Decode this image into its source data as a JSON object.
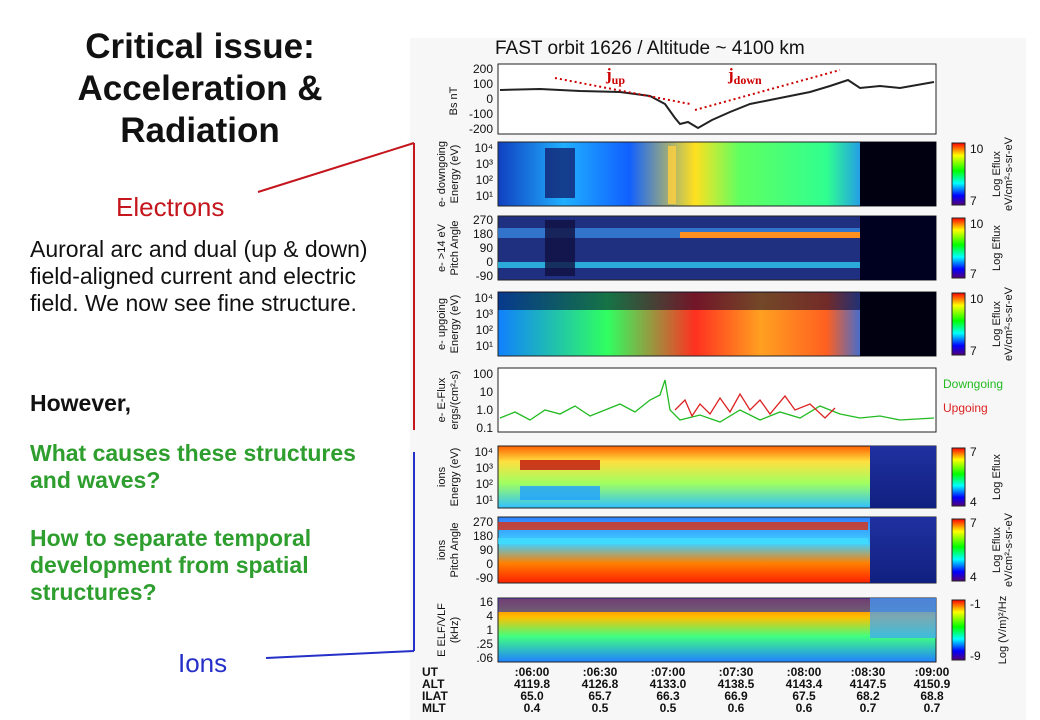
{
  "title": [
    "Critical issue:",
    "Acceleration &",
    "Radiation"
  ],
  "labels": {
    "electrons": "Electrons",
    "ions": "Ions"
  },
  "paragraphs": {
    "p1": "Auroral arc and dual (up & down) field-aligned current and electric field.  We now see fine structure.",
    "p2": "However,",
    "p3": "What causes these structures and waves?",
    "p4": "How to separate temporal development from spatial structures?"
  },
  "figure": {
    "caption": "FAST orbit 1626 / Altitude ~ 4100 km",
    "j_up": "j",
    "j_up_sub": "up",
    "j_down": "j",
    "j_down_sub": "down",
    "panels": [
      {
        "ylabel": [
          "Bs  nT"
        ],
        "ticks": [
          "200",
          "100",
          "0",
          "-100",
          "-200"
        ]
      },
      {
        "ylabel": [
          "e- downgoing",
          "Energy (eV)"
        ],
        "ticks": [
          "10⁴",
          "10³",
          "10²",
          "10¹"
        ],
        "cbar": [
          "10",
          "7"
        ],
        "cbar_label": [
          "Log Eflux",
          "eV/cm²-s-sr-eV"
        ]
      },
      {
        "ylabel": [
          "e- >14 eV",
          "Pitch Angle"
        ],
        "ticks": [
          "270",
          "180",
          "90",
          "0",
          "-90"
        ],
        "cbar": [
          "10",
          "7"
        ],
        "cbar_label": [
          "Log Eflux"
        ]
      },
      {
        "ylabel": [
          "e- upgoing",
          "Energy (eV)"
        ],
        "ticks": [
          "10⁴",
          "10³",
          "10²",
          "10¹"
        ],
        "cbar": [
          "10",
          "7"
        ],
        "cbar_label": [
          "Log Eflux",
          "eV/cm²-s-sr-eV"
        ]
      },
      {
        "ylabel": [
          "e- E-Flux",
          "ergs/(cm²-s)"
        ],
        "ticks": [
          "100",
          "10",
          "1.0",
          "0.1"
        ],
        "legend": [
          "Downgoing",
          "Upgoing"
        ]
      },
      {
        "ylabel": [
          "ions",
          "Energy (eV)"
        ],
        "ticks": [
          "10⁴",
          "10³",
          "10²",
          "10¹"
        ],
        "cbar": [
          "7",
          "4"
        ],
        "cbar_label": [
          "Log Eflux"
        ]
      },
      {
        "ylabel": [
          "ions",
          "Pitch Angle"
        ],
        "ticks": [
          "270",
          "180",
          "90",
          "0",
          "-90"
        ],
        "cbar": [
          "7",
          "4"
        ],
        "cbar_label": [
          "Log Eflux",
          "eV/cm²-s-sr-eV"
        ]
      },
      {
        "ylabel": [
          "E  ELF/VLF",
          "(kHz)"
        ],
        "ticks": [
          "16",
          "4",
          "1",
          ".25",
          ".06"
        ],
        "cbar": [
          "-1",
          "-9"
        ],
        "cbar_label": [
          "Log (V/m)²/Hz"
        ]
      }
    ],
    "row_names": [
      "UT",
      "ALT",
      "ILAT",
      "MLT"
    ],
    "columns": [
      [
        ":06:00",
        "4119.8",
        "65.0",
        "0.4"
      ],
      [
        ":06:30",
        "4126.8",
        "65.7",
        "0.5"
      ],
      [
        ":07:00",
        "4133.0",
        "66.3",
        "0.5"
      ],
      [
        ":07:30",
        "4138.5",
        "66.9",
        "0.6"
      ],
      [
        ":08:00",
        "4143.4",
        "67.5",
        "0.6"
      ],
      [
        ":08:30",
        "4147.5",
        "68.2",
        "0.7"
      ],
      [
        ":09:00",
        "4150.9",
        "68.8",
        "0.7"
      ]
    ]
  },
  "colors": {
    "electrons": "#c4161c",
    "ions": "#2530c8",
    "question": "#2e9e2e",
    "downgoing": "#22bb22",
    "upgoing": "#dd2222"
  }
}
